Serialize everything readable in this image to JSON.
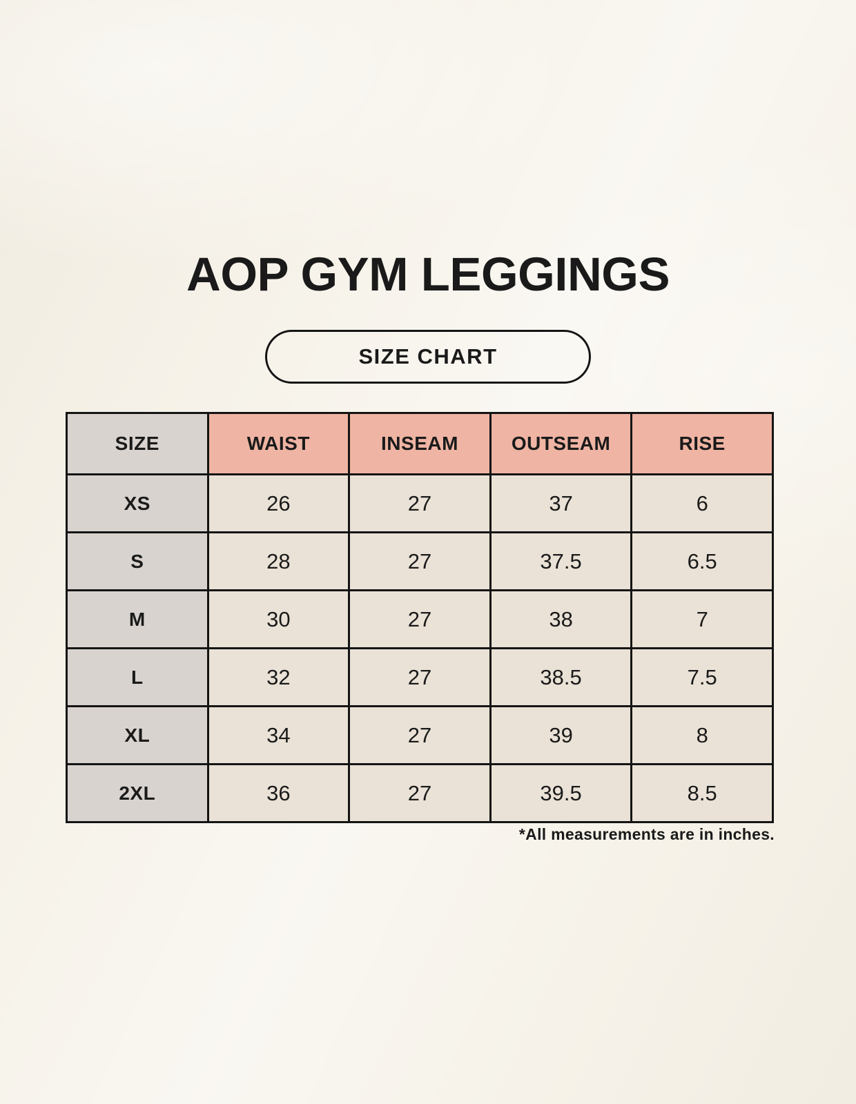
{
  "colors": {
    "bg": "#f6f2e9",
    "header_pink": "#efb4a3",
    "size_gray": "#d9d3cf",
    "cell_cream": "#eae2d6",
    "border": "#141414",
    "text": "#1a1a1a"
  },
  "chart_data": {
    "type": "table",
    "title": "AOP GYM LEGGINGS",
    "subtitle": "SIZE CHART",
    "columns": [
      "SIZE",
      "WAIST",
      "INSEAM",
      "OUTSEAM",
      "RISE"
    ],
    "rows": [
      [
        "XS",
        "26",
        "27",
        "37",
        "6"
      ],
      [
        "S",
        "28",
        "27",
        "37.5",
        "6.5"
      ],
      [
        "M",
        "30",
        "27",
        "38",
        "7"
      ],
      [
        "L",
        "32",
        "27",
        "38.5",
        "7.5"
      ],
      [
        "XL",
        "34",
        "27",
        "39",
        "8"
      ],
      [
        "2XL",
        "36",
        "27",
        "39.5",
        "8.5"
      ]
    ],
    "footnote": "*All measurements are in inches."
  }
}
